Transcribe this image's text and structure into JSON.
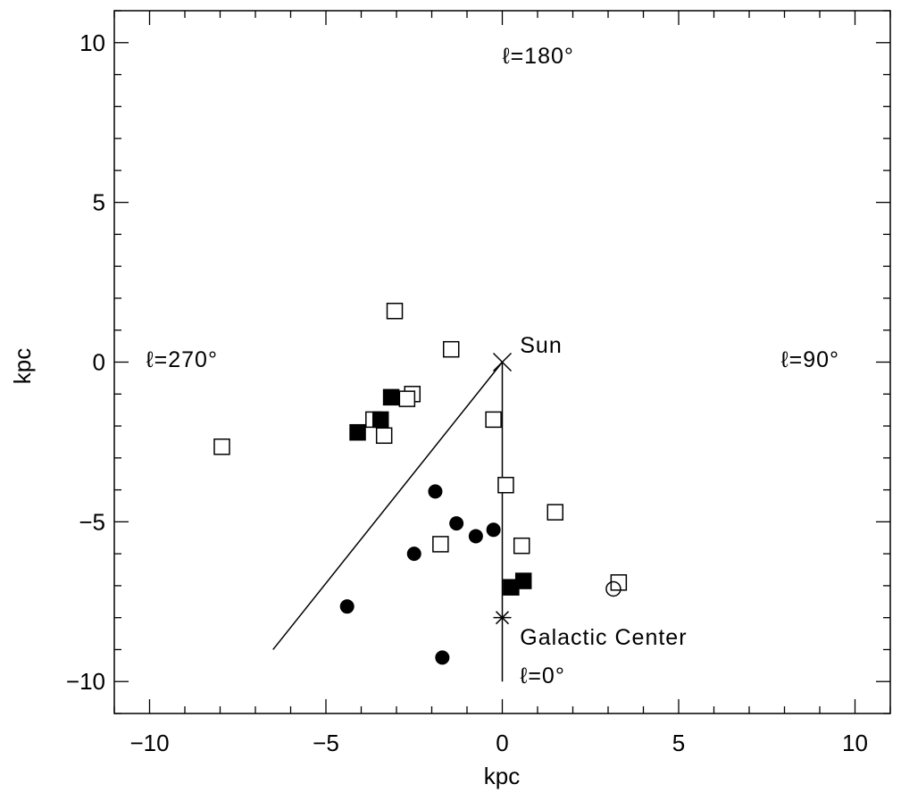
{
  "chart_data": {
    "type": "scatter",
    "xlabel": "kpc",
    "ylabel": "kpc",
    "xlim": [
      -11,
      11
    ],
    "ylim": [
      -11,
      11
    ],
    "x_ticks": [
      -10,
      -5,
      0,
      5,
      10
    ],
    "y_ticks": [
      -10,
      -5,
      0,
      5,
      10
    ],
    "x_tick_labels": [
      "−10",
      "−5",
      "0",
      "5",
      "10"
    ],
    "y_tick_labels": [
      "−10",
      "−5",
      "0",
      "5",
      "10"
    ],
    "minor_tick_step": 1,
    "grid": false,
    "series": [
      {
        "marker": "open-square",
        "points": [
          [
            -3.05,
            1.6
          ],
          [
            -1.45,
            0.4
          ],
          [
            -2.55,
            -1.0
          ],
          [
            -2.7,
            -1.15
          ],
          [
            -3.65,
            -1.8
          ],
          [
            -3.35,
            -2.3
          ],
          [
            -7.95,
            -2.65
          ],
          [
            -0.25,
            -1.8
          ],
          [
            0.1,
            -3.85
          ],
          [
            1.5,
            -4.7
          ],
          [
            -1.75,
            -5.7
          ],
          [
            0.55,
            -5.75
          ],
          [
            3.3,
            -6.9
          ]
        ]
      },
      {
        "marker": "filled-square",
        "points": [
          [
            -3.15,
            -1.1
          ],
          [
            -3.45,
            -1.8
          ],
          [
            -4.1,
            -2.2
          ],
          [
            0.25,
            -7.05
          ],
          [
            0.6,
            -6.85
          ]
        ]
      },
      {
        "marker": "filled-circle",
        "points": [
          [
            -1.9,
            -4.05
          ],
          [
            -1.3,
            -5.05
          ],
          [
            -0.75,
            -5.45
          ],
          [
            -0.25,
            -5.25
          ],
          [
            -2.5,
            -6.0
          ],
          [
            -4.4,
            -7.65
          ],
          [
            -1.7,
            -9.25
          ]
        ]
      },
      {
        "marker": "open-circle",
        "points": [
          [
            3.15,
            -7.1
          ]
        ]
      }
    ],
    "lines": [
      {
        "points": [
          [
            0,
            0
          ],
          [
            0,
            -10
          ]
        ]
      },
      {
        "points": [
          [
            0,
            0
          ],
          [
            -6.5,
            -9.0
          ]
        ]
      }
    ],
    "special_markers": [
      {
        "marker": "x-cross",
        "x": 0,
        "y": 0
      },
      {
        "marker": "asterisk",
        "x": 0,
        "y": -8
      }
    ],
    "annotations": [
      {
        "text": "ℓ=180°",
        "x": 0,
        "y": 9.6,
        "anchor": "start",
        "dx": 0
      },
      {
        "text": "ℓ=270°",
        "x": -10.1,
        "y": 0.1,
        "anchor": "start",
        "dx": 0
      },
      {
        "text": "ℓ=90°",
        "x": 7.9,
        "y": 0.1,
        "anchor": "start",
        "dx": 0
      },
      {
        "text": "Sun",
        "x": 0.5,
        "y": 0.55,
        "anchor": "start",
        "dx": 0
      },
      {
        "text": "Galactic Center",
        "x": 0.5,
        "y": -8.6,
        "anchor": "start",
        "dx": 0
      },
      {
        "text": "ℓ=0°",
        "x": 0.5,
        "y": -9.8,
        "anchor": "start",
        "dx": 0
      }
    ]
  }
}
